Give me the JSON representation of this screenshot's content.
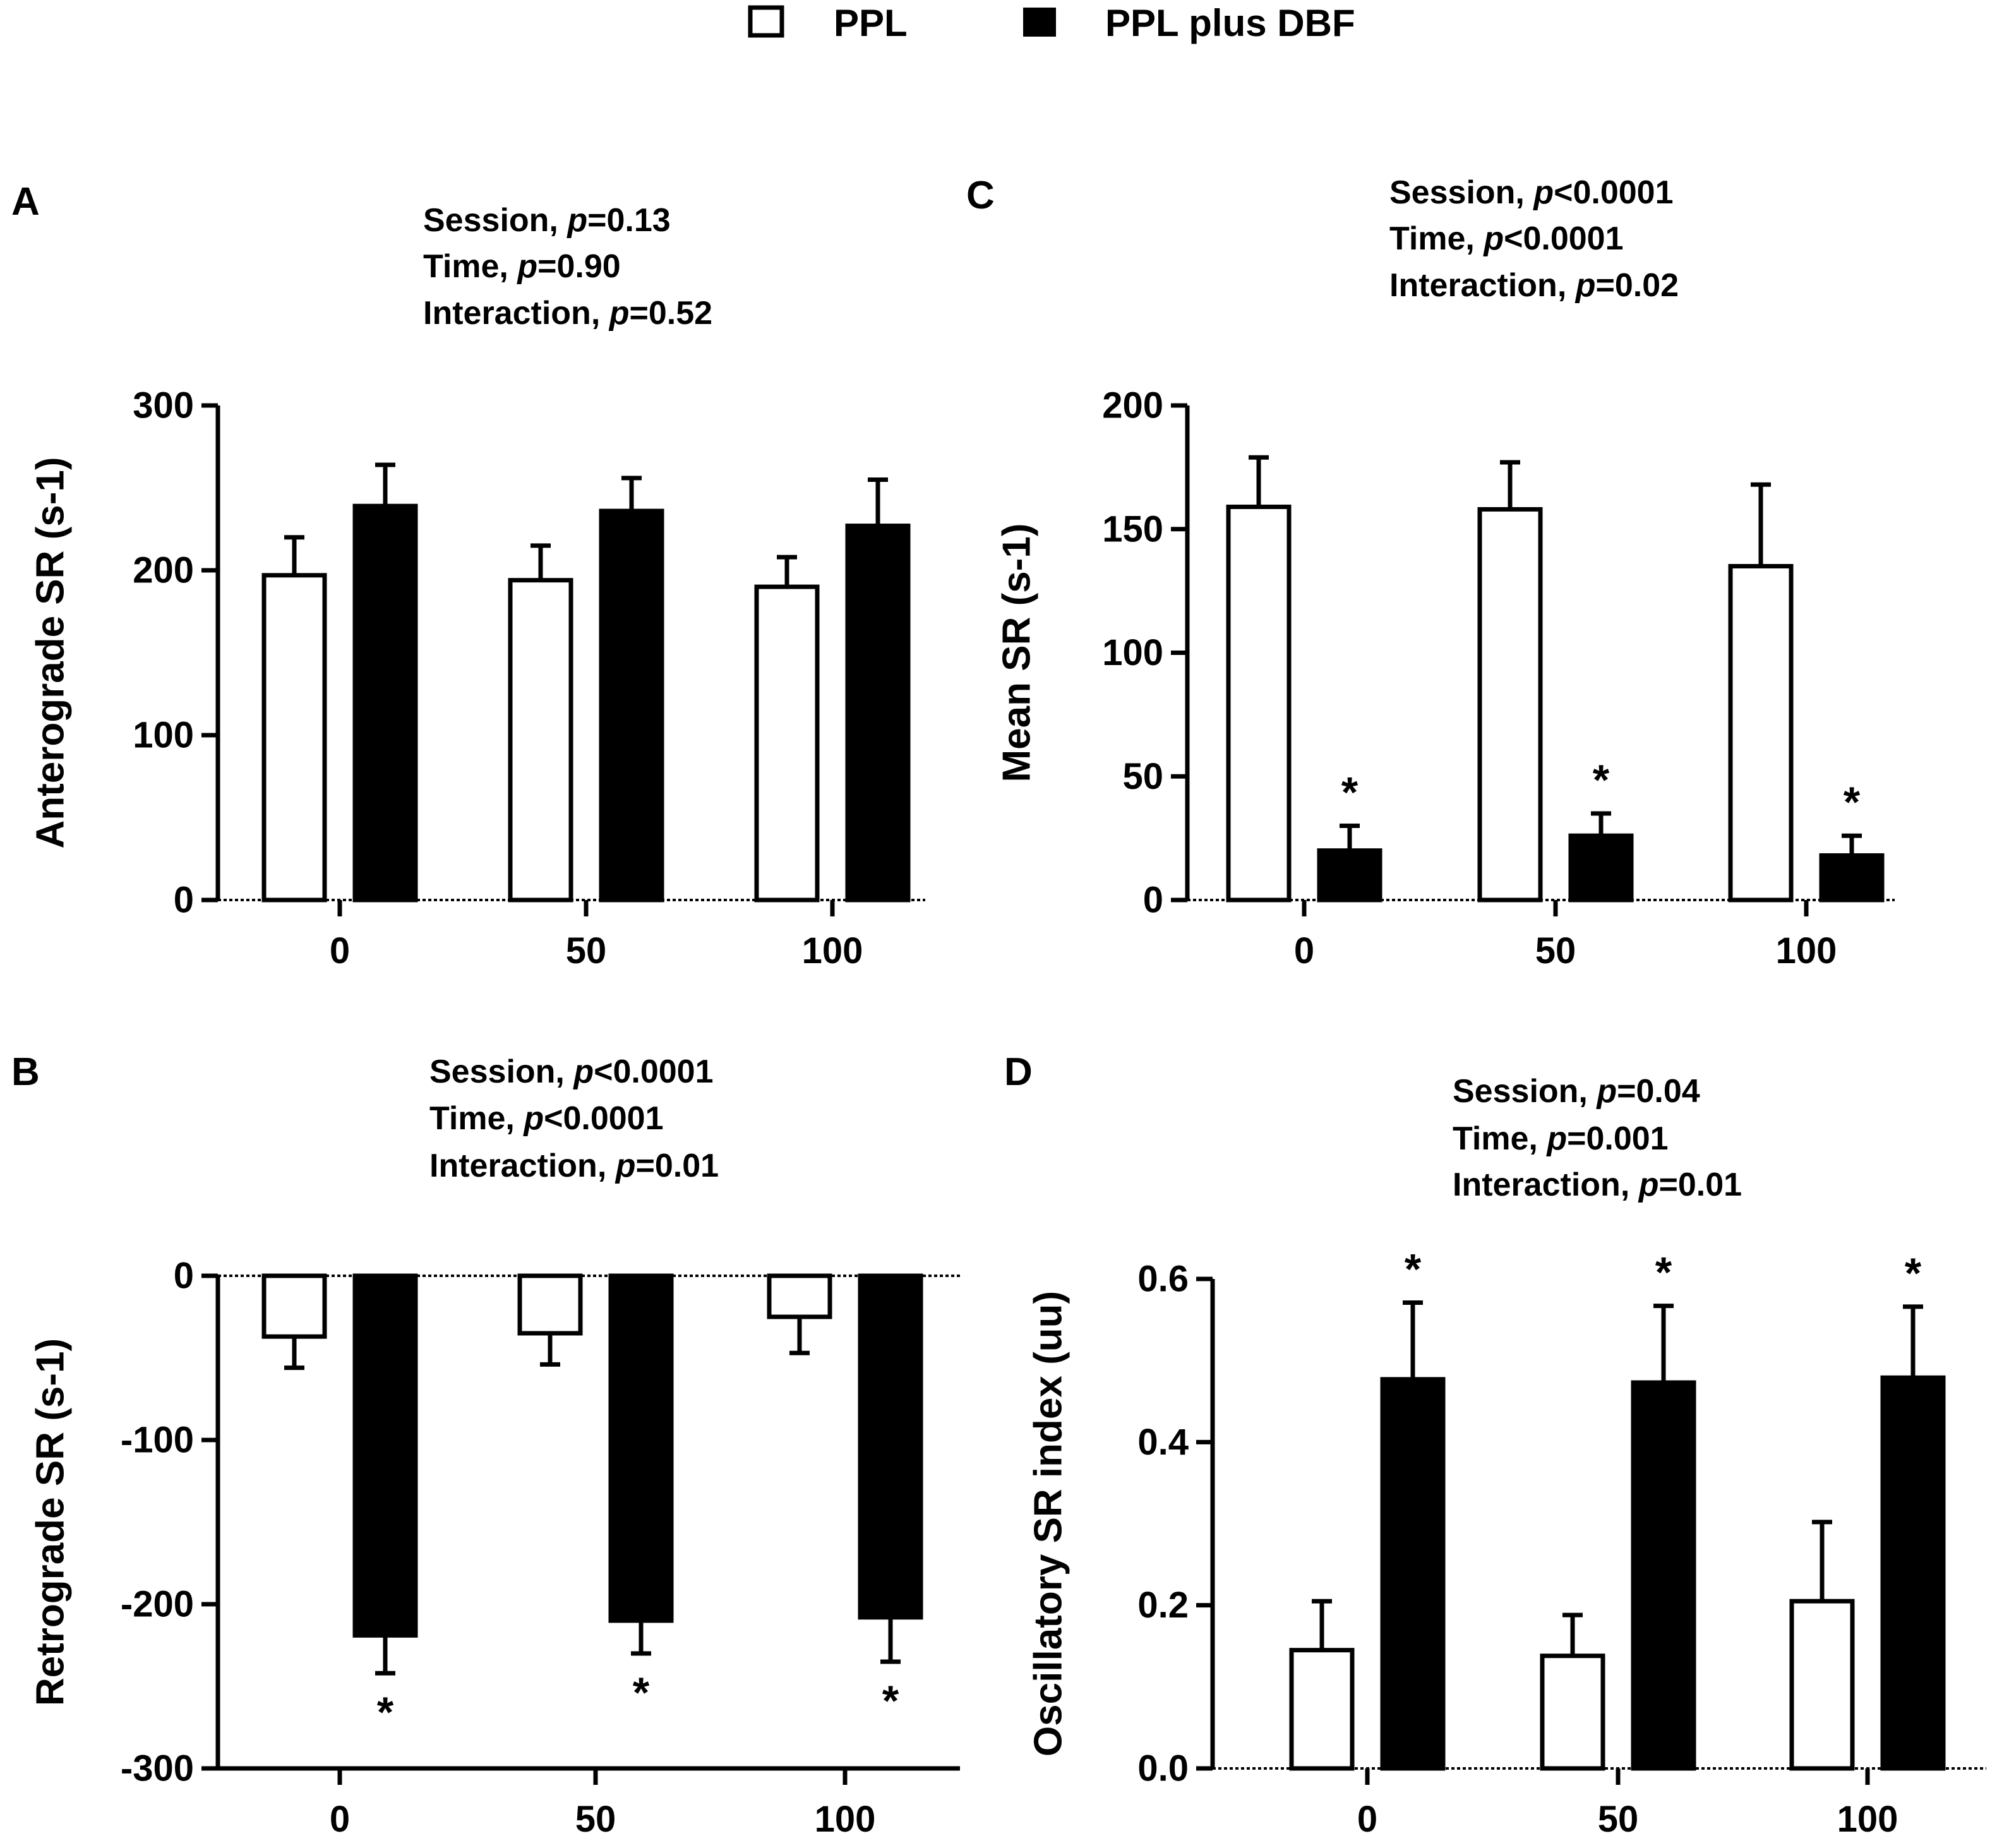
{
  "legend": {
    "items": [
      {
        "label": "PPL",
        "fill": "#ffffff"
      },
      {
        "label": "PPL plus DBF",
        "fill": "#000000"
      }
    ]
  },
  "colors": {
    "ppl": "#ffffff",
    "dbf": "#000000",
    "stroke": "#000000"
  },
  "chart_data": [
    {
      "id": "A",
      "type": "bar",
      "panel_label": "A",
      "ylabel": "Anterograde SR (s-1)",
      "xlabel": "",
      "categories": [
        "0",
        "50",
        "100"
      ],
      "ylim": [
        0,
        300
      ],
      "yticks": [
        "0",
        "100",
        "200",
        "300"
      ],
      "stats": [
        {
          "label": "Session, ",
          "p": "p",
          "value": "=0.13"
        },
        {
          "label": "Time, ",
          "p": "p",
          "value": "=0.90"
        },
        {
          "label": " Interaction, ",
          "p": "p",
          "value": "=0.52"
        }
      ],
      "series": [
        {
          "name": "PPL",
          "values": [
            197,
            194,
            190
          ],
          "errors": [
            23,
            21,
            18
          ],
          "sig": [
            "",
            "",
            ""
          ]
        },
        {
          "name": "PPL plus DBF",
          "values": [
            239,
            236,
            227
          ],
          "errors": [
            25,
            20,
            28
          ],
          "sig": [
            "",
            "",
            ""
          ]
        }
      ]
    },
    {
      "id": "C",
      "type": "bar",
      "panel_label": "C",
      "ylabel": "Mean SR (s-1)",
      "xlabel": "",
      "categories": [
        "0",
        "50",
        "100"
      ],
      "ylim": [
        0,
        200
      ],
      "yticks": [
        "0",
        "50",
        "100",
        "150",
        "200"
      ],
      "stats": [
        {
          "label": "Session, ",
          "p": "p",
          "value": "<0.0001"
        },
        {
          "label": "Time, ",
          "p": "p",
          "value": "<0.0001"
        },
        {
          "label": " Interaction, ",
          "p": "p",
          "value": "=0.02"
        }
      ],
      "series": [
        {
          "name": "PPL",
          "values": [
            159,
            158,
            135
          ],
          "errors": [
            20,
            19,
            33
          ],
          "sig": [
            "",
            "",
            ""
          ]
        },
        {
          "name": "PPL plus DBF",
          "values": [
            20,
            26,
            18
          ],
          "errors": [
            10,
            9,
            8
          ],
          "sig": [
            "*",
            "*",
            "*"
          ]
        }
      ]
    },
    {
      "id": "B",
      "type": "bar",
      "panel_label": "B",
      "ylabel": "Retrograde SR (s-1)",
      "xlabel": "",
      "categories": [
        "0",
        "50",
        "100"
      ],
      "ylim": [
        -300,
        0
      ],
      "yticks": [
        "0",
        "-100",
        "-200",
        "-300"
      ],
      "stats": [
        {
          "label": "Session, ",
          "p": "p",
          "value": "<0.0001"
        },
        {
          "label": "Time, ",
          "p": "p",
          "value": "<0.0001"
        },
        {
          "label": " Interaction, ",
          "p": "p",
          "value": "=0.01"
        }
      ],
      "series": [
        {
          "name": "PPL",
          "values": [
            -37,
            -35,
            -25
          ],
          "errors": [
            19,
            19,
            22
          ],
          "sig": [
            "",
            "",
            ""
          ]
        },
        {
          "name": "PPL plus DBF",
          "values": [
            -219,
            -210,
            -208
          ],
          "errors": [
            23,
            20,
            27
          ],
          "sig": [
            "*",
            "*",
            "*"
          ]
        }
      ]
    },
    {
      "id": "D",
      "type": "bar",
      "panel_label": "D",
      "ylabel": "Oscillatory SR index (uu)",
      "xlabel": "",
      "categories": [
        "0",
        "50",
        "100"
      ],
      "ylim": [
        0,
        0.6
      ],
      "yticks": [
        "0.0",
        "0.2",
        "0.4",
        "0.6"
      ],
      "stats": [
        {
          "label": "Session, ",
          "p": "p",
          "value": "=0.04"
        },
        {
          "label": "Time, ",
          "p": "p",
          "value": "=0.001"
        },
        {
          "label": " Interaction, ",
          "p": "p",
          "value": "=0.01"
        }
      ],
      "series": [
        {
          "name": "PPL",
          "values": [
            0.145,
            0.138,
            0.205
          ],
          "errors": [
            0.06,
            0.05,
            0.097
          ],
          "sig": [
            "",
            "",
            ""
          ]
        },
        {
          "name": "PPL plus DBF",
          "values": [
            0.477,
            0.473,
            0.479
          ],
          "errors": [
            0.094,
            0.094,
            0.087
          ],
          "sig": [
            "*",
            "*",
            "*"
          ]
        }
      ]
    }
  ]
}
